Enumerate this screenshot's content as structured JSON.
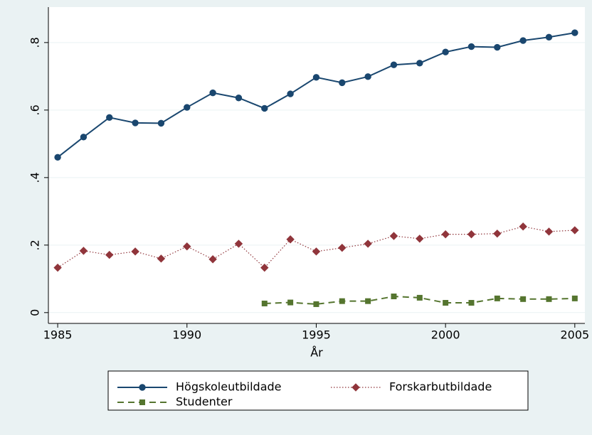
{
  "chart_data": {
    "type": "line",
    "x_label": "År",
    "x": [
      1985,
      1986,
      1987,
      1988,
      1989,
      1990,
      1991,
      1992,
      1993,
      1994,
      1995,
      1996,
      1997,
      1998,
      1999,
      2000,
      2001,
      2002,
      2003,
      2004,
      2005
    ],
    "series": [
      {
        "name": "Högskoleutbildade",
        "color": "#1a476f",
        "line_style": "solid",
        "marker": "circle",
        "values": [
          0.46,
          0.52,
          0.578,
          0.562,
          0.561,
          0.608,
          0.651,
          0.636,
          0.605,
          0.648,
          0.697,
          0.681,
          0.699,
          0.734,
          0.739,
          0.772,
          0.788,
          0.786,
          0.806,
          0.816,
          0.829
        ]
      },
      {
        "name": "Forskarbutbildade",
        "color": "#90353b",
        "line_style": "dotted",
        "marker": "diamond",
        "values": [
          0.133,
          0.183,
          0.171,
          0.181,
          0.16,
          0.196,
          0.158,
          0.204,
          0.133,
          0.217,
          0.181,
          0.192,
          0.204,
          0.227,
          0.219,
          0.232,
          0.232,
          0.234,
          0.255,
          0.24,
          0.244
        ]
      },
      {
        "name": "Studenter",
        "color": "#55752f",
        "line_style": "dashed",
        "marker": "square",
        "values": [
          null,
          null,
          null,
          null,
          null,
          null,
          null,
          null,
          0.027,
          0.03,
          0.025,
          0.034,
          0.034,
          0.048,
          0.044,
          0.029,
          0.029,
          0.042,
          0.04,
          0.04,
          0.042
        ]
      }
    ],
    "xlim": [
      1984.64,
      2005.39
    ],
    "xticks": [
      1985,
      1990,
      1995,
      2000,
      2005
    ],
    "ylim": [
      -0.032,
      0.905
    ],
    "yticks": [
      0,
      {
        "value": 0.2,
        "label": ".2"
      },
      {
        "value": 0.4,
        "label": ".4"
      },
      {
        "value": 0.6,
        "label": ".6"
      },
      {
        "value": 0.8,
        "label": ".8"
      }
    ],
    "grid": true,
    "legend": "bottom"
  }
}
